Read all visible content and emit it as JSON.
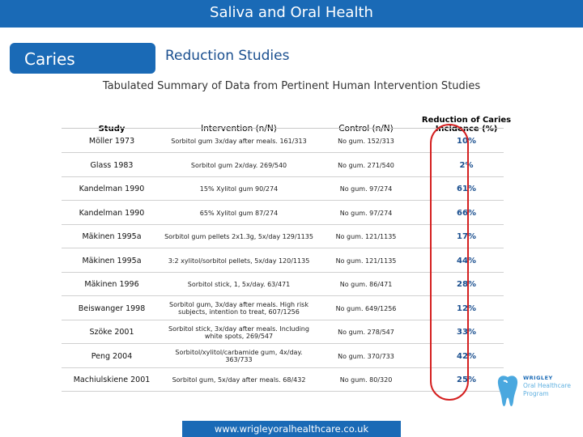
{
  "header": {
    "title": "Saliva and Oral Health"
  },
  "tabs": {
    "caries": "Caries",
    "reduction": "Reduction Studies"
  },
  "subtitle": "Tabulated Summary of Data from Pertinent Human Intervention Studies",
  "table": {
    "columns": [
      "Study",
      "Intervention (n/N)",
      "Control (n/N)",
      "Reduction of Caries Incidence (%)"
    ],
    "rows": [
      {
        "study": "Möller 1973",
        "intervention": "Sorbitol gum 3x/day after meals. 161/313",
        "control": "No gum. 152/313",
        "reduction": "10%"
      },
      {
        "study": "Glass 1983",
        "intervention": "Sorbitol gum 2x/day. 269/540",
        "control": "No gum. 271/540",
        "reduction": "2%"
      },
      {
        "study": "Kandelman 1990",
        "intervention": "15% Xylitol gum 90/274",
        "control": "No gum. 97/274",
        "reduction": "61%"
      },
      {
        "study": "Kandelman 1990",
        "intervention": "65% Xylitol gum 87/274",
        "control": "No gum. 97/274",
        "reduction": "66%"
      },
      {
        "study": "Mäkinen 1995a",
        "intervention": "Sorbitol gum pellets 2x1.3g, 5x/day 129/1135",
        "control": "No gum. 121/1135",
        "reduction": "17%"
      },
      {
        "study": "Mäkinen 1995a",
        "intervention": "3:2 xylitol/sorbitol pellets, 5x/day 120/1135",
        "control": "No gum. 121/1135",
        "reduction": "44%"
      },
      {
        "study": "Mäkinen 1996",
        "intervention": "Sorbitol stick, 1, 5x/day. 63/471",
        "control": "No gum. 86/471",
        "reduction": "28%"
      },
      {
        "study": "Beiswanger 1998",
        "intervention": "Sorbitol gum, 3x/day after meals. High risk subjects, intention to treat, 607/1256",
        "control": "No gum. 649/1256",
        "reduction": "12%"
      },
      {
        "study": "Szöke 2001",
        "intervention": "Sorbitol stick, 3x/day after meals. Including white spots, 269/547",
        "control": "No gum. 278/547",
        "reduction": "33%"
      },
      {
        "study": "Peng 2004",
        "intervention": "Sorbitol/xylitol/carbamide gum, 4x/day. 363/733",
        "control": "No gum. 370/733",
        "reduction": "42%"
      },
      {
        "study": "Machiulskiene 2001",
        "intervention": "Sorbitol gum, 5x/day after meals. 68/432",
        "control": "No gum. 80/320",
        "reduction": "25%"
      }
    ]
  },
  "logo": {
    "line1": "WRIGLEY",
    "line2": "Oral Healthcare",
    "line3": "Program"
  },
  "footer": {
    "url": "www.wrigleyoralhealthcare.co.uk"
  },
  "colors": {
    "brand_blue": "#1a6ab6",
    "highlight": "#d42020"
  }
}
